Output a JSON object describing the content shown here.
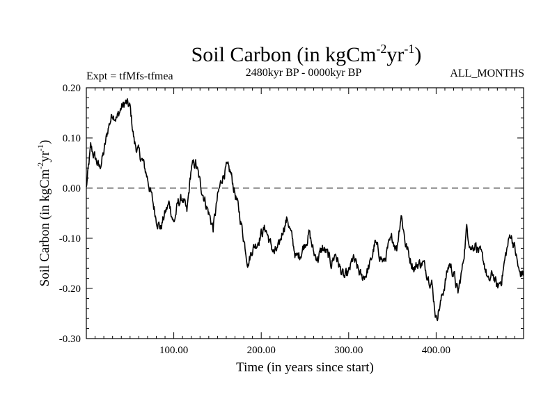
{
  "chart_data": {
    "type": "line",
    "title": "Soil Carbon (in kgCm",
    "title_exp1": "-2",
    "title_mid": "yr",
    "title_exp2": "-1",
    "title_end": ")",
    "subtitle_left": "Expt = tfMfs-tfmea",
    "subtitle_center": "2480kyr BP - 0000kyr BP",
    "subtitle_right": "ALL_MONTHS",
    "xlabel": "Time (in years since start)",
    "ylabel": "Soil Carbon (in kgCm",
    "ylabel_exp1": "-2",
    "ylabel_mid": "yr",
    "ylabel_exp2": "-1",
    "ylabel_end": ")",
    "xlim": [
      0,
      500
    ],
    "ylim": [
      -0.3,
      0.2
    ],
    "x_ticks": [
      {
        "value": 100,
        "label": "100.00"
      },
      {
        "value": 200,
        "label": "200.00"
      },
      {
        "value": 300,
        "label": "300.00"
      },
      {
        "value": 400,
        "label": "400.00"
      }
    ],
    "y_ticks": [
      {
        "value": 0.2,
        "label": "0.20"
      },
      {
        "value": 0.1,
        "label": "0.10"
      },
      {
        "value": 0.0,
        "label": "0.00"
      },
      {
        "value": -0.1,
        "label": "-0.10"
      },
      {
        "value": -0.2,
        "label": "-0.20"
      },
      {
        "value": -0.3,
        "label": "-0.30"
      }
    ],
    "reference_line": {
      "value": 0.0,
      "style": "dashed"
    },
    "series": [
      {
        "name": "Soil Carbon",
        "x": [
          0,
          5,
          10,
          15,
          20,
          25,
          30,
          35,
          40,
          45,
          50,
          55,
          60,
          65,
          70,
          75,
          80,
          85,
          90,
          95,
          100,
          105,
          110,
          115,
          120,
          125,
          130,
          135,
          140,
          145,
          150,
          155,
          160,
          165,
          170,
          175,
          180,
          185,
          190,
          195,
          200,
          205,
          210,
          215,
          220,
          225,
          230,
          235,
          240,
          245,
          250,
          255,
          260,
          265,
          270,
          275,
          280,
          285,
          290,
          295,
          300,
          305,
          310,
          315,
          320,
          325,
          330,
          335,
          340,
          345,
          350,
          355,
          360,
          365,
          370,
          375,
          380,
          385,
          390,
          395,
          400,
          405,
          410,
          415,
          420,
          425,
          430,
          435,
          440,
          445,
          450,
          455,
          460,
          465,
          470,
          475,
          480,
          485,
          490,
          495,
          500
        ],
        "values": [
          0.0,
          0.08,
          0.06,
          0.04,
          0.07,
          0.12,
          0.15,
          0.14,
          0.16,
          0.17,
          0.16,
          0.09,
          0.07,
          0.05,
          0.02,
          -0.02,
          -0.06,
          -0.08,
          -0.05,
          -0.03,
          -0.07,
          -0.03,
          -0.02,
          -0.05,
          0.04,
          0.05,
          0.01,
          -0.02,
          -0.05,
          -0.08,
          -0.02,
          0.02,
          0.04,
          0.03,
          -0.01,
          -0.05,
          -0.1,
          -0.15,
          -0.12,
          -0.11,
          -0.09,
          -0.08,
          -0.11,
          -0.13,
          -0.12,
          -0.08,
          -0.06,
          -0.1,
          -0.14,
          -0.13,
          -0.11,
          -0.09,
          -0.13,
          -0.14,
          -0.12,
          -0.13,
          -0.15,
          -0.13,
          -0.16,
          -0.18,
          -0.17,
          -0.14,
          -0.16,
          -0.18,
          -0.17,
          -0.15,
          -0.11,
          -0.13,
          -0.15,
          -0.12,
          -0.1,
          -0.12,
          -0.05,
          -0.11,
          -0.14,
          -0.16,
          -0.15,
          -0.15,
          -0.17,
          -0.19,
          -0.26,
          -0.23,
          -0.19,
          -0.15,
          -0.17,
          -0.21,
          -0.16,
          -0.08,
          -0.12,
          -0.11,
          -0.13,
          -0.15,
          -0.19,
          -0.17,
          -0.2,
          -0.18,
          -0.13,
          -0.09,
          -0.12,
          -0.17,
          -0.17
        ]
      }
    ]
  }
}
